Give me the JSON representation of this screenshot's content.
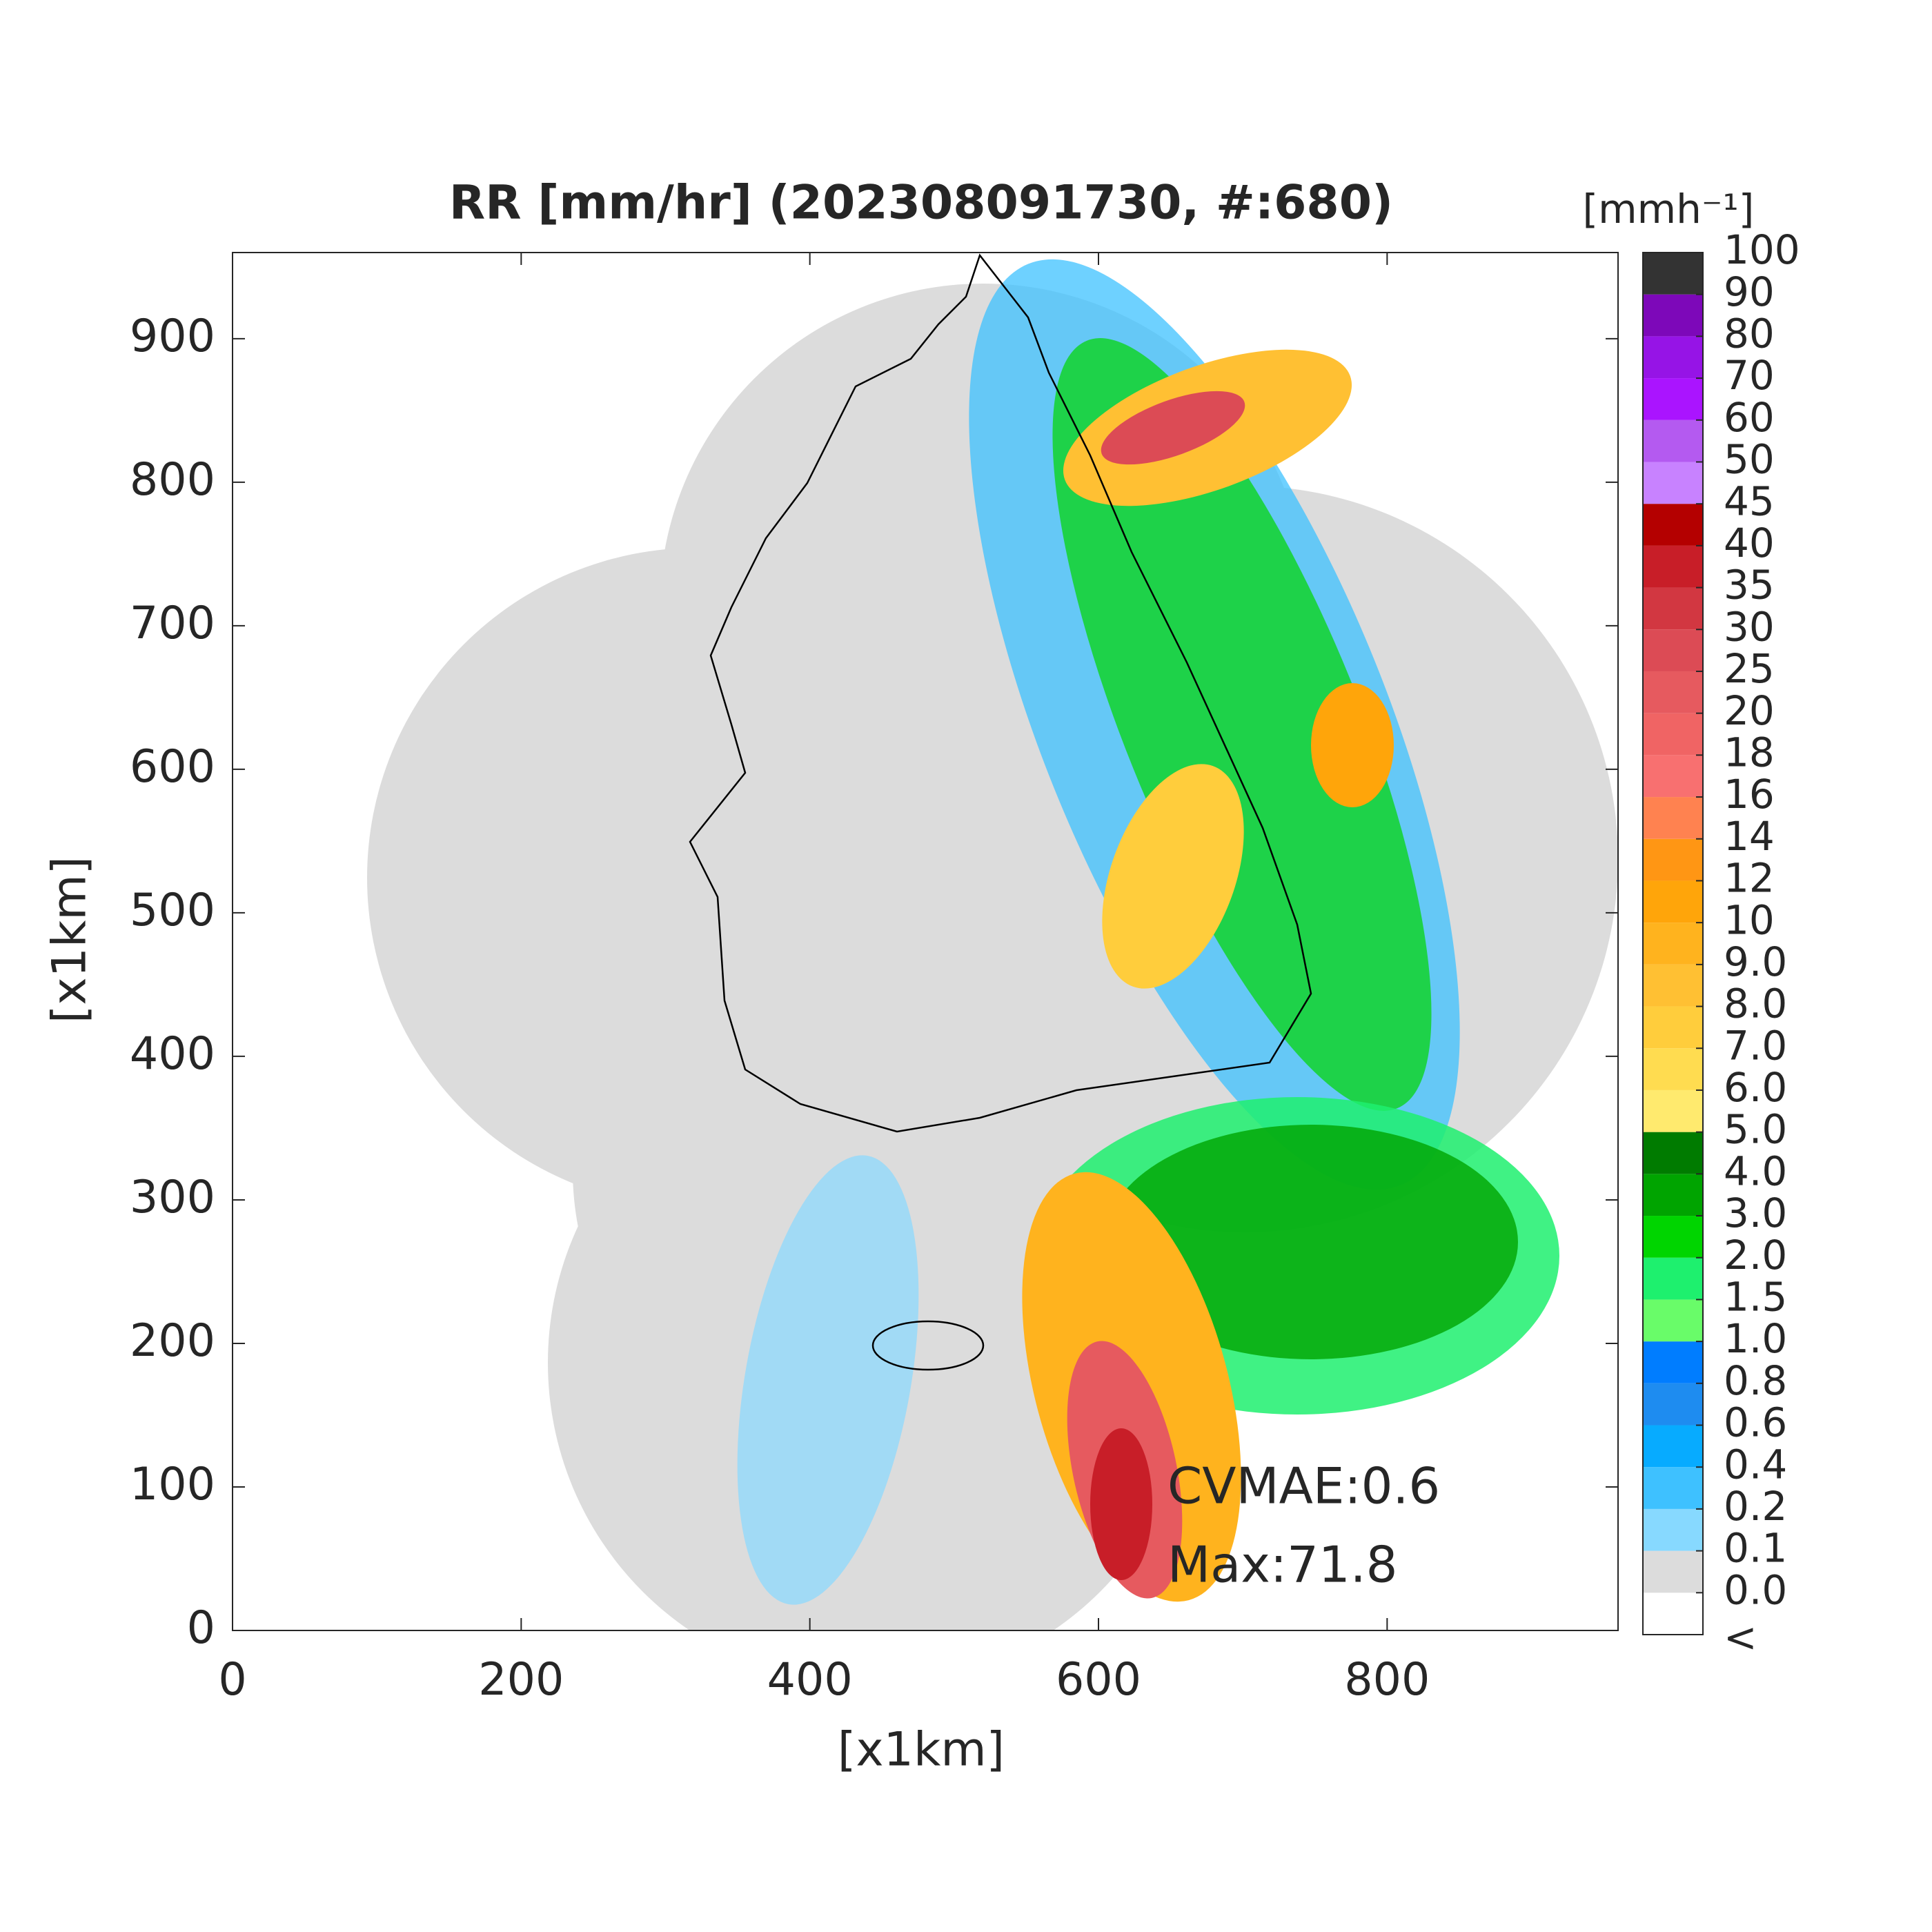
{
  "chart_data": {
    "type": "radar-map",
    "title": "RR [mm/hr] (202308091730, #:680)",
    "xlabel": "[x1km]",
    "ylabel": "[x1km]",
    "xlim": [
      0,
      960
    ],
    "ylim": [
      0,
      960
    ],
    "xticks": [
      0,
      200,
      400,
      600,
      800
    ],
    "yticks": [
      0,
      100,
      200,
      300,
      400,
      500,
      600,
      700,
      800,
      900
    ],
    "annotations": [
      "CVMAE:0.6",
      "Max:71.8"
    ],
    "colorbar": {
      "label": "[mmh⁻¹]",
      "under_label": "<",
      "under_color": "#ffffff",
      "ticks": [
        {
          "value": 0,
          "label": "0.0"
        },
        0.1,
        0.2,
        0.4,
        0.6,
        0.8,
        {
          "value": 1,
          "label": "1.0"
        },
        1.5,
        {
          "value": 2,
          "label": "2.0"
        },
        {
          "value": 3,
          "label": "3.0"
        },
        {
          "value": 4,
          "label": "4.0"
        },
        {
          "value": 5,
          "label": "5.0"
        },
        {
          "value": 6,
          "label": "6.0"
        },
        {
          "value": 7,
          "label": "7.0"
        },
        {
          "value": 8,
          "label": "8.0"
        },
        {
          "value": 9,
          "label": "9.0"
        },
        10,
        12,
        14,
        16,
        18,
        20,
        25,
        30,
        35,
        40,
        45,
        50,
        60,
        70,
        80,
        90,
        100
      ],
      "colors": [
        "#dcdcdc",
        "#87d9ff",
        "#3ec1ff",
        "#07abff",
        "#1e8cf0",
        "#007dff",
        "#69fc69",
        "#1ef06e",
        "#00d500",
        "#00a400",
        "#007b00",
        "#ffea6e",
        "#ffdc50",
        "#ffcd3c",
        "#ffc033",
        "#ffb31e",
        "#ffa50a",
        "#ff9614",
        "#ff8250",
        "#f87070",
        "#f06464",
        "#e65a5f",
        "#dc4b55",
        "#d23741",
        "#c81e28",
        "#b40000",
        "#c882ff",
        "#b45af0",
        "#aa14ff",
        "#9614e6",
        "#7d08b9",
        "#333333"
      ]
    }
  }
}
